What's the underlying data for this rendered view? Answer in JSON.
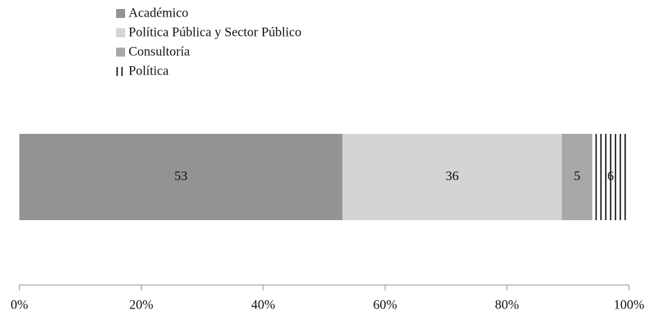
{
  "chart_data": {
    "type": "stacked_bar_horizontal",
    "series": [
      {
        "name": "Académico",
        "color": "#939393",
        "values": [
          53
        ]
      },
      {
        "name": "Política Pública y Sector Público",
        "color": "#d4d3d6",
        "values": [
          36
        ]
      },
      {
        "name": "Consultoría",
        "color": "#a8a8a8",
        "values": [
          5
        ]
      },
      {
        "name": "Política",
        "color": "#000000",
        "pattern": "vertical-lines",
        "values": [
          6
        ]
      }
    ],
    "xlim": [
      0,
      100
    ],
    "xticks": [
      {
        "value": 0,
        "label": "0%"
      },
      {
        "value": 20,
        "label": "20%"
      },
      {
        "value": 40,
        "label": "40%"
      },
      {
        "value": 60,
        "label": "60%"
      },
      {
        "value": 80,
        "label": "80%"
      },
      {
        "value": 100,
        "label": "100%"
      }
    ],
    "legend": "top"
  }
}
